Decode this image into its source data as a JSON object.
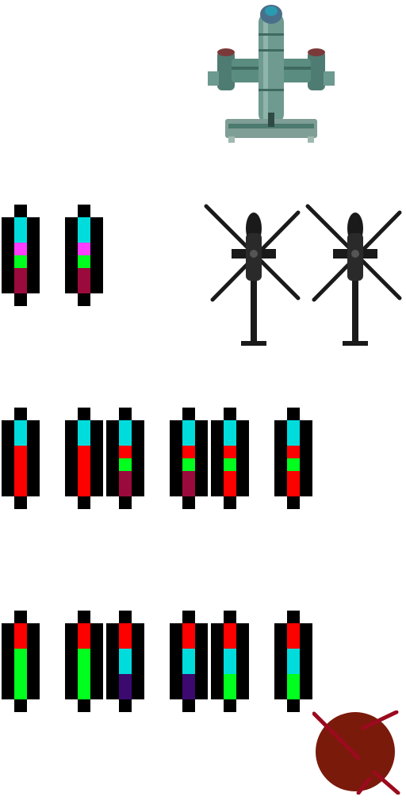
{
  "sheet": {
    "colors": {
      "black": "#000000",
      "cyan": "#00dcdc",
      "magenta": "#ff3cff",
      "green": "#00ff1e",
      "maroon": "#9b0a3c",
      "red": "#ff0000",
      "purple": "#3c0a6e",
      "mine_fill": "#7a1a0a",
      "mine_spike": "#9b0a1e",
      "ship_hull": "#5b8c80",
      "heli_body": "#1a1a1a"
    },
    "sprites": [
      {
        "name": "gunship-sprite",
        "icon": "gunship-icon"
      },
      {
        "name": "helicopter-sprite-1",
        "icon": "helicopter-icon"
      },
      {
        "name": "helicopter-sprite-2",
        "icon": "helicopter-icon"
      },
      {
        "name": "mine-sprite",
        "icon": "mine-icon"
      }
    ],
    "bar_rows": [
      {
        "row": 1,
        "bars": [
          [
            "cyan",
            "cyan",
            "magenta",
            "green",
            "maroon",
            "maroon"
          ],
          [
            "cyan",
            "cyan",
            "magenta",
            "green",
            "maroon",
            "maroon"
          ]
        ]
      },
      {
        "row": 2,
        "bars": [
          [
            "cyan",
            "cyan",
            "red",
            "red",
            "red",
            "red"
          ],
          [
            "cyan",
            "cyan",
            "red",
            "red",
            "red",
            "red"
          ],
          [
            "cyan",
            "cyan",
            "red",
            "green",
            "maroon",
            "maroon"
          ],
          [
            "cyan",
            "cyan",
            "red",
            "green",
            "maroon",
            "maroon"
          ],
          [
            "cyan",
            "cyan",
            "red",
            "green",
            "red",
            "red"
          ],
          [
            "cyan",
            "cyan",
            "red",
            "green",
            "red",
            "red"
          ]
        ]
      },
      {
        "row": 3,
        "bars": [
          [
            "red",
            "red",
            "green",
            "green",
            "green",
            "green"
          ],
          [
            "red",
            "red",
            "green",
            "green",
            "green",
            "green"
          ],
          [
            "red",
            "red",
            "cyan",
            "cyan",
            "purple",
            "purple"
          ],
          [
            "red",
            "red",
            "cyan",
            "cyan",
            "purple",
            "purple"
          ],
          [
            "red",
            "red",
            "cyan",
            "cyan",
            "green",
            "green"
          ],
          [
            "red",
            "red",
            "cyan",
            "cyan",
            "green",
            "green"
          ]
        ]
      }
    ]
  }
}
